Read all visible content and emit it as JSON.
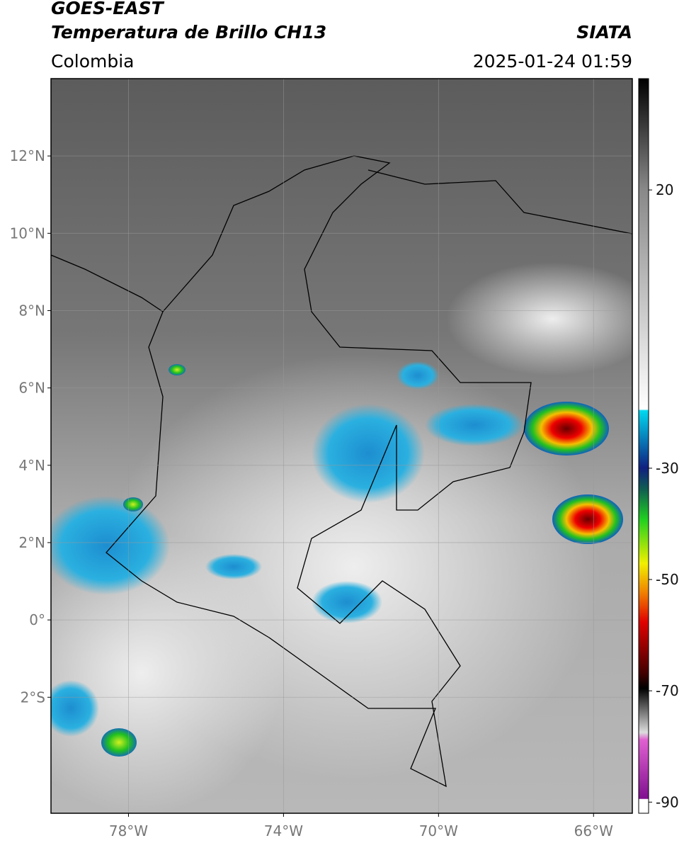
{
  "header": {
    "title": "GOES-EAST",
    "subtitle": "Temperatura de Brillo CH13",
    "region": "Colombia",
    "source": "SIATA",
    "datetime": "2025-01-24 01:59"
  },
  "map": {
    "lonlim": [
      -80,
      -65
    ],
    "latlim": [
      -5,
      14
    ],
    "lonticks": [
      {
        "value": -78,
        "label": "78°W"
      },
      {
        "value": -74,
        "label": "74°W"
      },
      {
        "value": -70,
        "label": "70°W"
      },
      {
        "value": -66,
        "label": "66°W"
      }
    ],
    "latticks": [
      {
        "value": 12,
        "label": "12°N"
      },
      {
        "value": 10,
        "label": "10°N"
      },
      {
        "value": 8,
        "label": "8°N"
      },
      {
        "value": 6,
        "label": "6°N"
      },
      {
        "value": 4,
        "label": "4°N"
      },
      {
        "value": 2,
        "label": "2°N"
      },
      {
        "value": 0,
        "label": "0°"
      },
      {
        "value": -2,
        "label": "2°S"
      }
    ]
  },
  "colorbar": {
    "lim": [
      -92,
      40
    ],
    "ticks": [
      20,
      -30,
      -50,
      -70,
      -90
    ]
  }
}
